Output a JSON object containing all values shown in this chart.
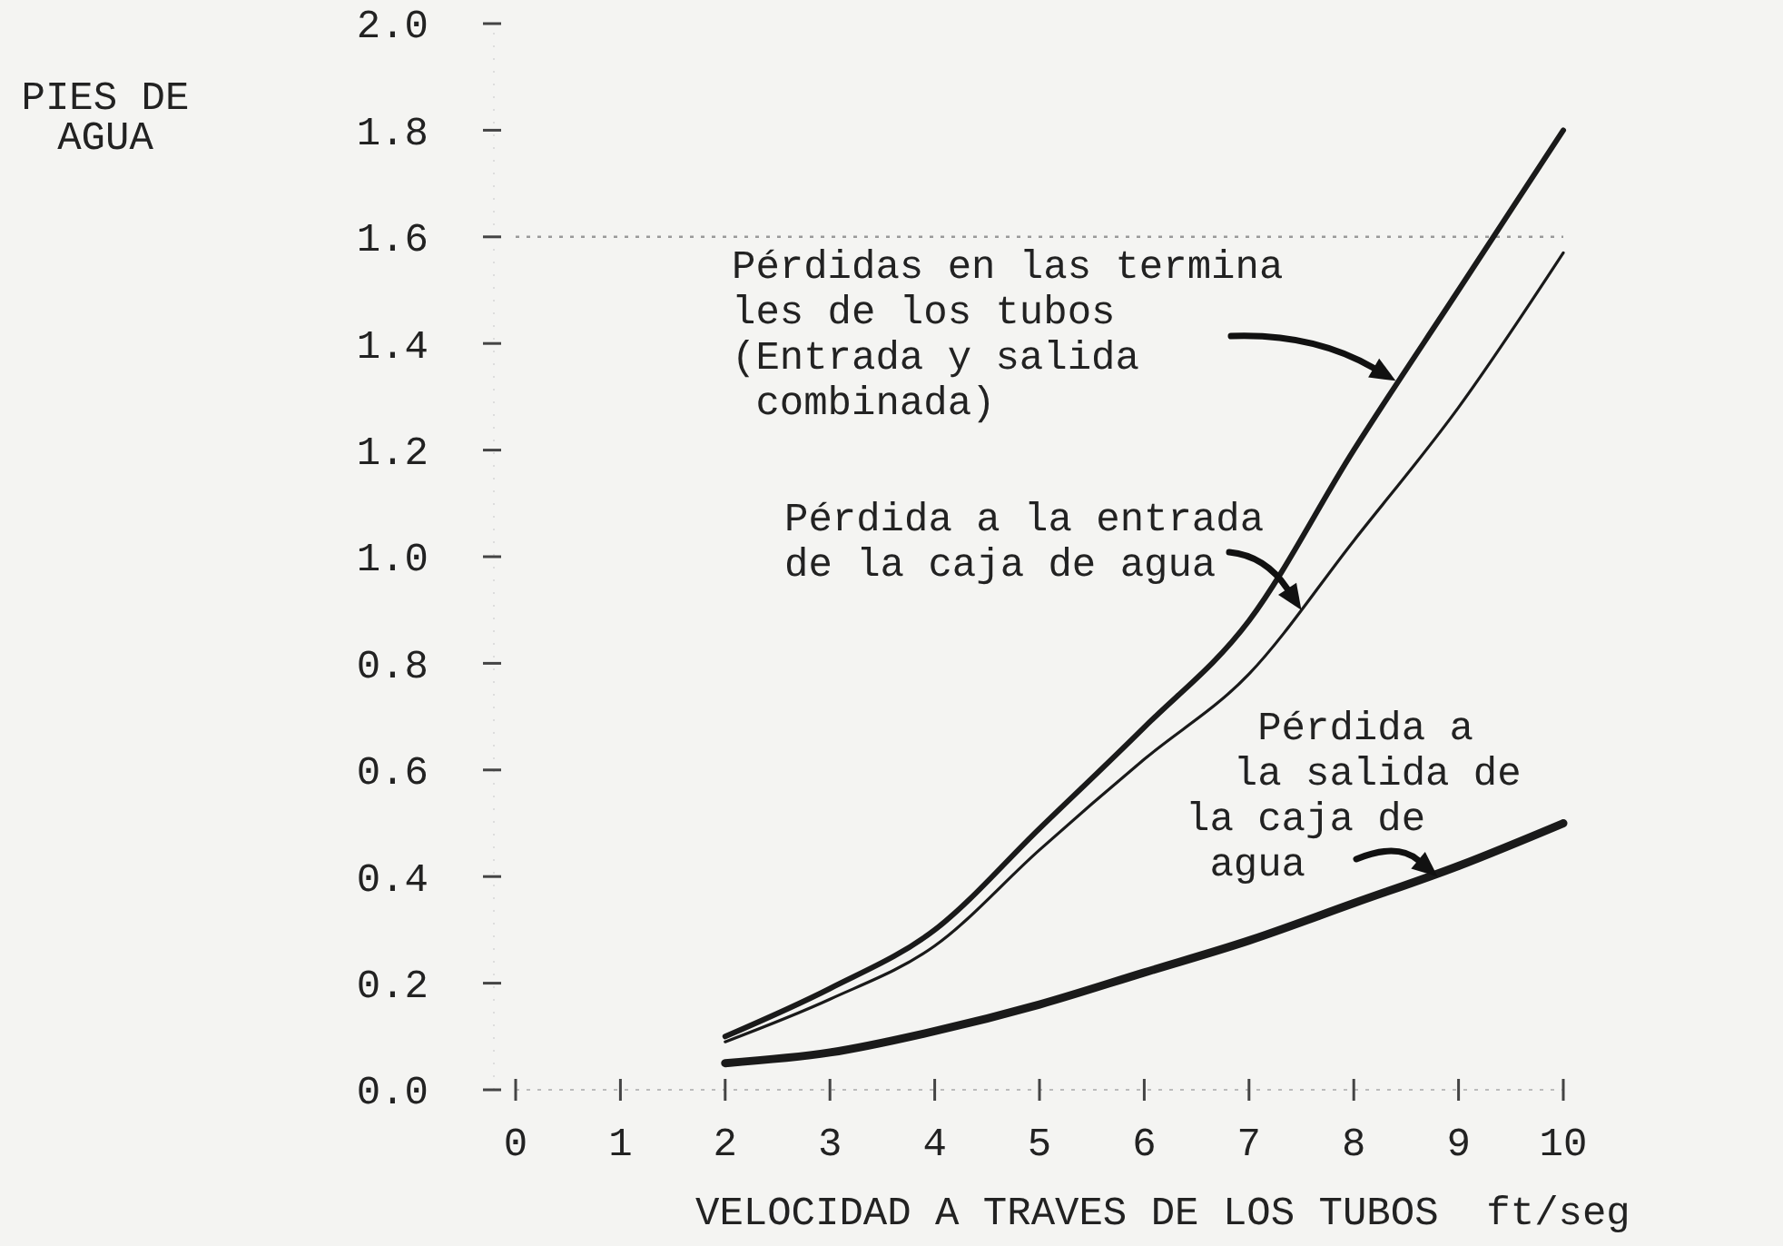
{
  "chart_data": {
    "type": "line",
    "ylabel": "PIES DE\nAGUA",
    "xlabel": "VELOCIDAD A TRAVES DE LOS TUBOS  ft/seg",
    "x": [
      2,
      3,
      4,
      5,
      6,
      7,
      8,
      9,
      10
    ],
    "series": [
      {
        "color": "#1a1a1a",
        "values": [
          0.1,
          0.19,
          0.3,
          0.49,
          0.68,
          0.88,
          1.2,
          1.5,
          1.8
        ]
      },
      {
        "color": "#1a1a1a",
        "values": [
          0.09,
          0.17,
          0.27,
          0.45,
          0.62,
          0.78,
          1.03,
          1.28,
          1.57
        ]
      },
      {
        "color": "#1a1a1a",
        "values": [
          0.05,
          0.07,
          0.11,
          0.16,
          0.22,
          0.28,
          0.35,
          0.42,
          0.5
        ]
      }
    ],
    "xlim": [
      0,
      10
    ],
    "xticks": [
      0,
      1,
      2,
      3,
      4,
      5,
      6,
      7,
      8,
      9,
      10
    ],
    "ylim": [
      0,
      2
    ],
    "yticks": [
      {
        "value": 0,
        "label": "0.0"
      },
      {
        "value": 0.2,
        "label": "0.2"
      },
      {
        "value": 0.4,
        "label": "0.4"
      },
      {
        "value": 0.6,
        "label": "0.6"
      },
      {
        "value": 0.8,
        "label": "0.8"
      },
      {
        "value": 1,
        "label": "1.0"
      },
      {
        "value": 1.2,
        "label": "1.2"
      },
      {
        "value": 1.4,
        "label": "1.4"
      },
      {
        "value": 1.6,
        "label": "1.6"
      },
      {
        "value": 1.8,
        "label": "1.8"
      },
      {
        "value": 2,
        "label": "2.0"
      }
    ],
    "ref_lines": [
      {
        "axis": "y",
        "value": 1.6,
        "line_style": "dotted",
        "color": "#9a9a9a"
      }
    ],
    "annotations": [
      {
        "text": "Pérdidas en las termina\nles de los tubos\n(Entrada y salida\n combinada)",
        "x": 8.4,
        "y": 1.33
      },
      {
        "text": "Pérdida a la entrada\nde la caja de agua",
        "x": 7.5,
        "y": 0.9
      },
      {
        "text": "   Pérdida a\n  la salida de\nla caja de\n agua",
        "x": 8.8,
        "y": 0.4
      }
    ],
    "grid": false,
    "marker": "none",
    "line_style": "solid"
  }
}
